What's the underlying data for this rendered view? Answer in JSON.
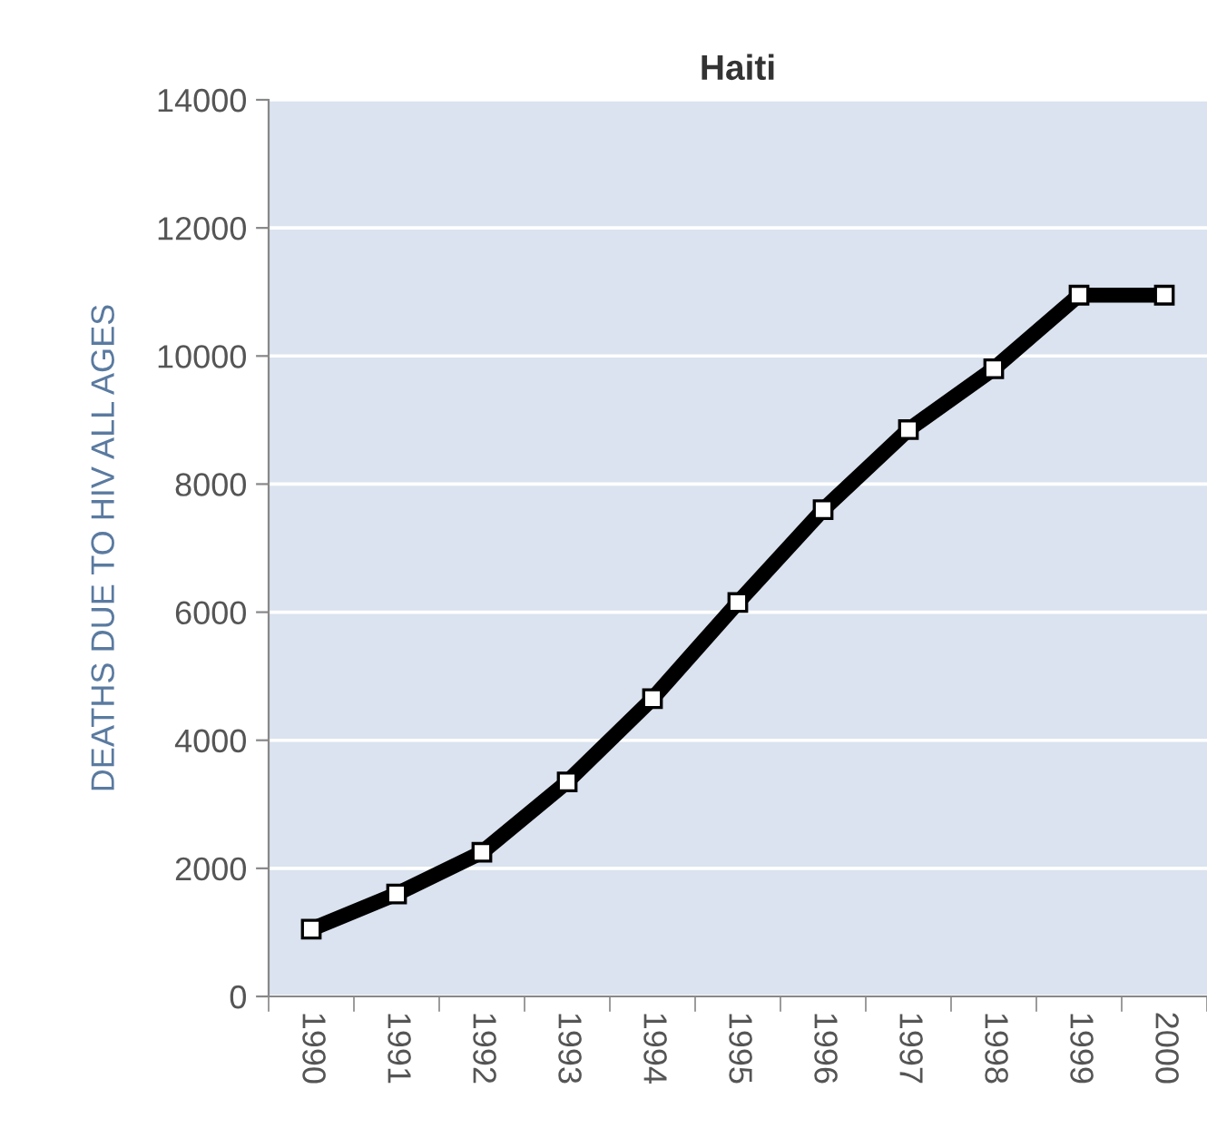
{
  "chart_data": {
    "type": "line",
    "title": "Haiti",
    "ylabel": "DEATHS DUE TO HIV ALL AGES",
    "categories": [
      "1990",
      "1991",
      "1992",
      "1993",
      "1994",
      "1995",
      "1996",
      "1997",
      "1998",
      "1999",
      "2000"
    ],
    "series": [
      {
        "color": "#000000",
        "values": [
          1050,
          1600,
          2250,
          3350,
          4650,
          6150,
          7600,
          8850,
          9800,
          10950,
          10950
        ]
      }
    ],
    "ylim": [
      0,
      14000
    ],
    "yticks": [
      0,
      2000,
      4000,
      6000,
      8000,
      10000,
      12000,
      14000
    ],
    "grid": "y",
    "marker": "square",
    "line_style": "solid"
  }
}
